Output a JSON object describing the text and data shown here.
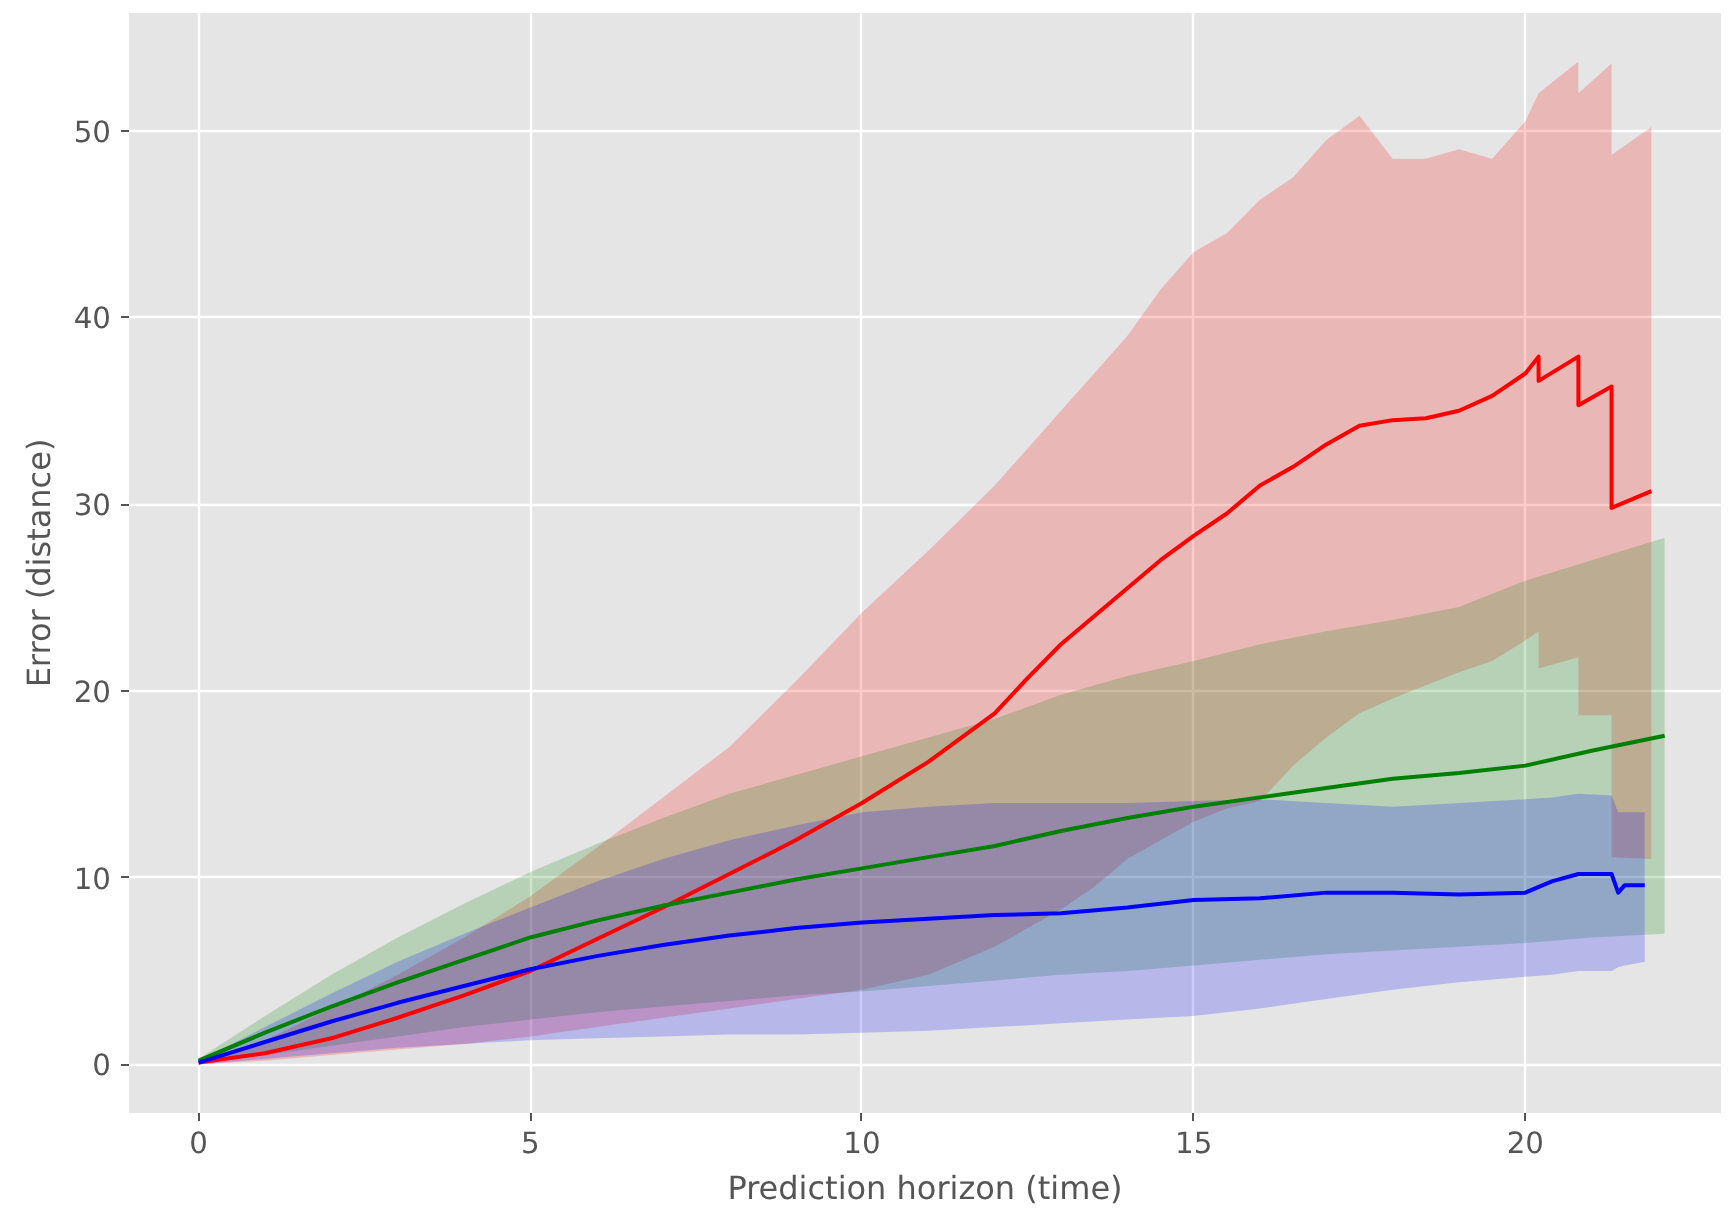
{
  "chart_data": {
    "type": "line",
    "xlabel": "Prediction horizon (time)",
    "ylabel": "Error (distance)",
    "xlim": [
      -1.05,
      22.95
    ],
    "ylim": [
      -2.6,
      56.3
    ],
    "xticks": [
      0,
      5,
      10,
      15,
      20
    ],
    "yticks": [
      0,
      10,
      20,
      30,
      40,
      50
    ],
    "grid": true,
    "series": [
      {
        "color": "#ff0000",
        "x": [
          0,
          1,
          2,
          3,
          4,
          5,
          6,
          7,
          8,
          9,
          10,
          11,
          12,
          12.5,
          13,
          13.5,
          14,
          14.5,
          15,
          15.5,
          16,
          16.5,
          17,
          17.5,
          18,
          18.5,
          19,
          19.5,
          20,
          20.2,
          20.2,
          20.8,
          20.8,
          21.3,
          21.3,
          21.9
        ],
        "values": [
          0.1,
          0.6,
          1.4,
          2.5,
          3.7,
          5,
          6.7,
          8.4,
          10.2,
          12,
          14,
          16.2,
          18.8,
          20.7,
          22.5,
          24,
          25.5,
          27,
          28.3,
          29.5,
          31,
          32,
          33.2,
          34.2,
          34.5,
          34.6,
          35,
          35.8,
          37,
          37.9,
          36.6,
          37.9,
          35.3,
          36.3,
          29.8,
          30.7
        ],
        "lower": [
          0,
          0.2,
          0.5,
          0.8,
          1.1,
          1.5,
          2,
          2.5,
          3,
          3.5,
          4,
          4.8,
          6.3,
          7.3,
          8.3,
          9.5,
          11,
          12,
          13,
          13.7,
          14.1,
          16,
          17.5,
          18.8,
          19.6,
          20.3,
          21,
          21.6,
          22.7,
          23.2,
          21.2,
          21.8,
          18.7,
          18.7,
          11.1,
          11
        ],
        "upper": [
          0.2,
          1.3,
          3,
          4.8,
          6.8,
          9,
          11.6,
          14.3,
          17,
          20.5,
          24.2,
          27.5,
          31,
          33,
          35,
          37,
          39,
          41.5,
          43.5,
          44.5,
          46.3,
          47.5,
          49.5,
          50.8,
          48.5,
          48.5,
          49,
          48.5,
          50.5,
          52,
          52,
          53.7,
          52,
          53.6,
          48.7,
          50.2
        ]
      },
      {
        "color": "#008000",
        "x": [
          0,
          1,
          2,
          3,
          4,
          5,
          6,
          7,
          8,
          9,
          10,
          11,
          12,
          13,
          14,
          15,
          16,
          17,
          18,
          19,
          20,
          21,
          22.1
        ],
        "values": [
          0.2,
          1.7,
          3.1,
          4.4,
          5.6,
          6.8,
          7.7,
          8.5,
          9.2,
          9.9,
          10.5,
          11.1,
          11.7,
          12.5,
          13.2,
          13.8,
          14.3,
          14.8,
          15.3,
          15.6,
          16,
          16.8,
          17.6
        ],
        "lower": [
          0.1,
          0.5,
          1,
          1.5,
          2,
          2.4,
          2.8,
          3.1,
          3.4,
          3.7,
          3.9,
          4.2,
          4.5,
          4.8,
          5,
          5.3,
          5.6,
          5.9,
          6.1,
          6.3,
          6.5,
          6.8,
          7
        ],
        "upper": [
          0.3,
          2.6,
          4.8,
          6.8,
          8.6,
          10.3,
          11.8,
          13.2,
          14.5,
          15.5,
          16.5,
          17.5,
          18.5,
          19.8,
          20.8,
          21.6,
          22.5,
          23.2,
          23.8,
          24.5,
          25.9,
          27,
          28.2
        ]
      },
      {
        "color": "#0000ff",
        "x": [
          0,
          1,
          2,
          3,
          4,
          5,
          6,
          7,
          8,
          9,
          10,
          11,
          12,
          13,
          14,
          15,
          16,
          17,
          18,
          19,
          20,
          20.4,
          20.8,
          21.3,
          21.4,
          21.5,
          21.8
        ],
        "values": [
          0.1,
          1.2,
          2.3,
          3.3,
          4.2,
          5.1,
          5.8,
          6.4,
          6.9,
          7.3,
          7.6,
          7.8,
          8,
          8.1,
          8.4,
          8.8,
          8.9,
          9.2,
          9.2,
          9.1,
          9.2,
          9.8,
          10.2,
          10.2,
          9.2,
          9.6,
          9.6
        ],
        "lower": [
          0,
          0.3,
          0.6,
          0.9,
          1.1,
          1.3,
          1.4,
          1.5,
          1.6,
          1.6,
          1.7,
          1.8,
          2,
          2.2,
          2.4,
          2.6,
          3,
          3.5,
          4,
          4.4,
          4.7,
          4.8,
          5,
          5,
          5.2,
          5.3,
          5.5
        ],
        "upper": [
          0.2,
          2,
          3.8,
          5.5,
          7,
          8.4,
          9.8,
          11,
          12,
          12.8,
          13.5,
          13.8,
          14,
          14,
          14,
          14.1,
          14.2,
          14,
          13.8,
          14,
          14.2,
          14.3,
          14.5,
          14.4,
          13.5,
          13.5,
          13.5
        ]
      }
    ]
  }
}
